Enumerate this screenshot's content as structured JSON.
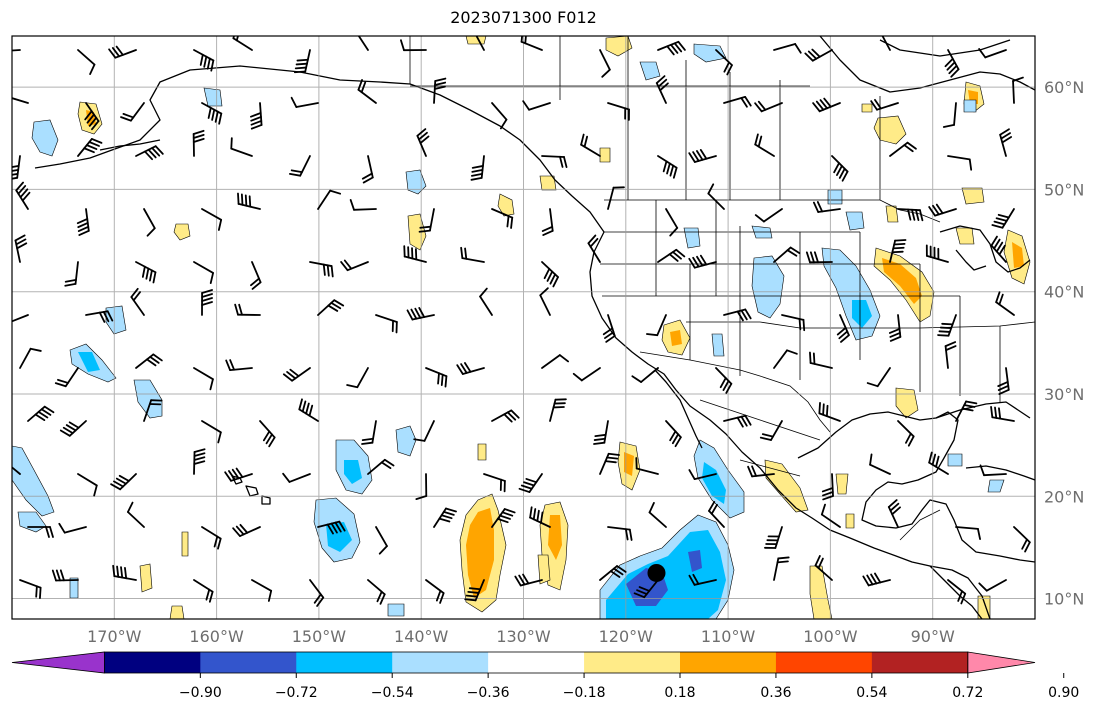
{
  "title": "2023071300 F012",
  "map": {
    "lon_range": [
      -180,
      -80
    ],
    "lat_range": [
      8,
      65
    ],
    "lon_ticks": [
      {
        "lon": -170,
        "label": "170°W"
      },
      {
        "lon": -160,
        "label": "160°W"
      },
      {
        "lon": -150,
        "label": "150°W"
      },
      {
        "lon": -140,
        "label": "140°W"
      },
      {
        "lon": -130,
        "label": "130°W"
      },
      {
        "lon": -120,
        "label": "120°W"
      },
      {
        "lon": -110,
        "label": "110°W"
      },
      {
        "lon": -100,
        "label": "100°W"
      },
      {
        "lon": -90,
        "label": "90°W"
      }
    ],
    "lat_ticks": [
      {
        "lat": 10,
        "label": "10°N"
      },
      {
        "lat": 20,
        "label": "20°N"
      },
      {
        "lat": 30,
        "label": "30°N"
      },
      {
        "lat": 40,
        "label": "40°N"
      },
      {
        "lat": 50,
        "label": "50°N"
      },
      {
        "lat": 60,
        "label": "60°N"
      }
    ],
    "grid": true,
    "marker": {
      "lon": -117,
      "lat": 12.5,
      "color": "#000000"
    }
  },
  "colorbar": {
    "colors": [
      "#9933cc",
      "#000080",
      "#3355cc",
      "#00bfff",
      "#aadfff",
      "#ffffff",
      "#ffeb88",
      "#ffa500",
      "#ff4500",
      "#b22222",
      "#ff88aa"
    ],
    "labels": [
      "−0.90",
      "−0.72",
      "−0.54",
      "−0.36",
      "−0.18",
      "0.18",
      "0.36",
      "0.54",
      "0.72",
      "0.90"
    ]
  }
}
